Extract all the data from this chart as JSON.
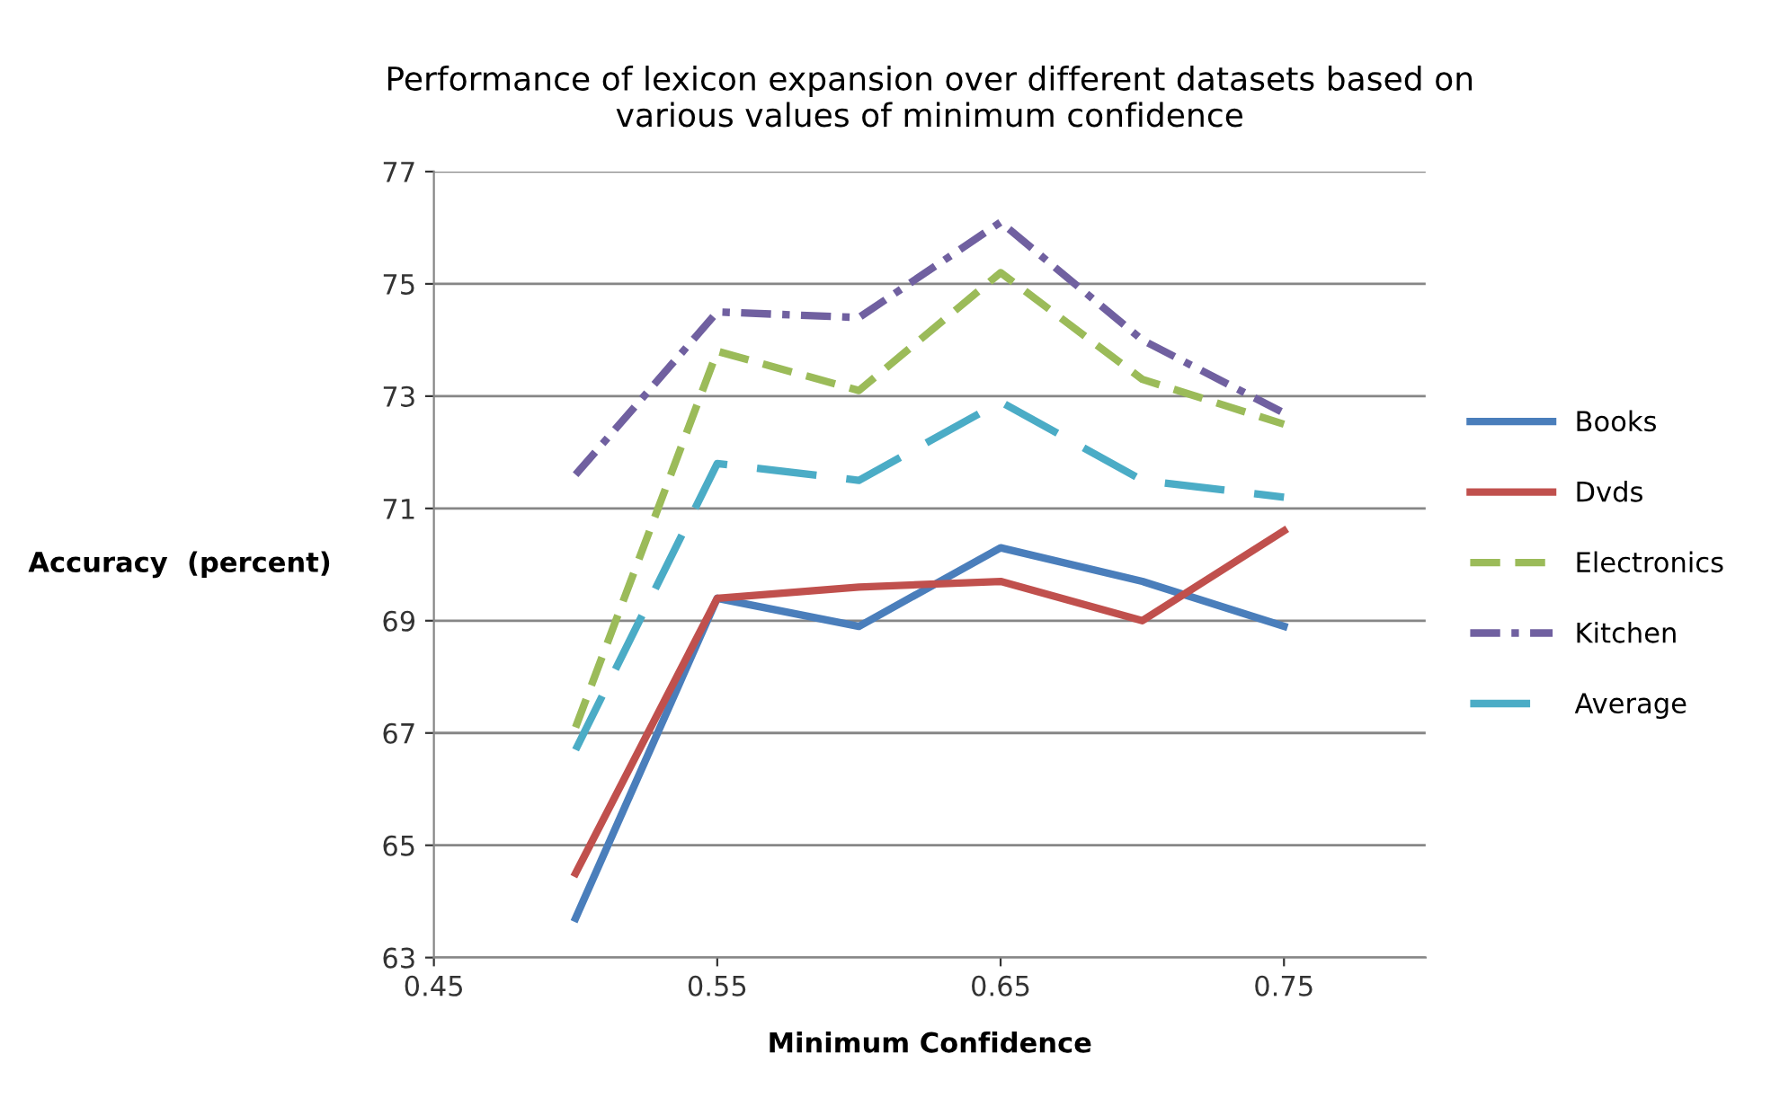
{
  "chart_data": {
    "type": "line",
    "title": "Performance of lexicon expansion over different datasets based on\nvarious values of minimum confidence",
    "xlabel": "Minimum Confidence",
    "ylabel": "Accuracy  (percent)",
    "x": [
      0.5,
      0.55,
      0.6,
      0.65,
      0.7,
      0.75
    ],
    "series": [
      {
        "name": "Books",
        "color": "#4a7ebb",
        "line_style": "solid",
        "values": [
          63.7,
          69.4,
          68.9,
          70.3,
          69.7,
          68.9
        ]
      },
      {
        "name": "Dvds",
        "color": "#c0504d",
        "line_style": "solid",
        "values": [
          64.5,
          69.4,
          69.6,
          69.7,
          69.0,
          70.6
        ]
      },
      {
        "name": "Electronics",
        "color": "#9bbb59",
        "line_style": "dashed",
        "values": [
          67.1,
          73.8,
          73.1,
          75.2,
          73.3,
          72.5
        ]
      },
      {
        "name": "Kitchen",
        "color": "#7060a0",
        "line_style": "dashdot",
        "values": [
          71.6,
          74.5,
          74.4,
          76.1,
          74.0,
          72.7
        ]
      },
      {
        "name": "Average",
        "color": "#4bacc6",
        "line_style": "longdash",
        "values": [
          66.7,
          71.8,
          71.5,
          72.9,
          71.5,
          71.2
        ]
      }
    ],
    "xlim": [
      0.45,
      0.8
    ],
    "xticks": [
      {
        "value": 0.45,
        "label": "0.45"
      },
      {
        "value": 0.55,
        "label": "0.55"
      },
      {
        "value": 0.65,
        "label": "0.65"
      },
      {
        "value": 0.75,
        "label": "0.75"
      }
    ],
    "ylim": [
      63,
      77
    ],
    "yticks": [
      63,
      65,
      67,
      69,
      71,
      73,
      75,
      77
    ],
    "grid": "y",
    "legend": "right",
    "marker": "none"
  }
}
